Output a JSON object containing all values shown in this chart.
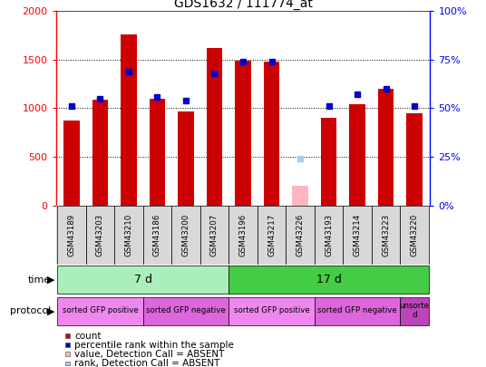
{
  "title": "GDS1632 / 111774_at",
  "samples": [
    "GSM43189",
    "GSM43203",
    "GSM43210",
    "GSM43186",
    "GSM43200",
    "GSM43207",
    "GSM43196",
    "GSM43217",
    "GSM43226",
    "GSM43193",
    "GSM43214",
    "GSM43223",
    "GSM43220"
  ],
  "count_values": [
    870,
    1090,
    1760,
    1100,
    970,
    1620,
    1490,
    1480,
    200,
    900,
    1040,
    1200,
    950
  ],
  "rank_values": [
    51,
    55,
    69,
    56,
    54,
    68,
    74,
    74,
    24,
    51,
    57,
    60,
    51
  ],
  "absent_mask": [
    0,
    0,
    0,
    0,
    0,
    0,
    0,
    0,
    1,
    0,
    0,
    0,
    0
  ],
  "ylim_left": [
    0,
    2000
  ],
  "ylim_right": [
    0,
    100
  ],
  "yticks_left": [
    0,
    500,
    1000,
    1500,
    2000
  ],
  "yticks_right": [
    0,
    25,
    50,
    75,
    100
  ],
  "bar_color_normal": "#cc0000",
  "bar_color_absent": "#ffb6c1",
  "rank_color_normal": "#0000cc",
  "rank_color_absent": "#aaccee",
  "bg_color": "#ffffff",
  "grid_color": "#000000",
  "time_groups": [
    {
      "label": "7 d",
      "start": 0,
      "end": 5,
      "color": "#aaeebb"
    },
    {
      "label": "17 d",
      "start": 6,
      "end": 12,
      "color": "#44cc44"
    }
  ],
  "protocol_groups": [
    {
      "label": "sorted GFP positive",
      "start": 0,
      "end": 2,
      "color": "#ee88ee"
    },
    {
      "label": "sorted GFP negative",
      "start": 3,
      "end": 5,
      "color": "#dd66dd"
    },
    {
      "label": "sorted GFP positive",
      "start": 6,
      "end": 8,
      "color": "#ee88ee"
    },
    {
      "label": "sorted GFP negative",
      "start": 9,
      "end": 11,
      "color": "#dd66dd"
    },
    {
      "label": "unsorte\nd",
      "start": 12,
      "end": 12,
      "color": "#bb44bb"
    }
  ],
  "legend_items": [
    {
      "color": "#cc0000",
      "label": "count"
    },
    {
      "color": "#0000cc",
      "label": "percentile rank within the sample"
    },
    {
      "color": "#ffb6c1",
      "label": "value, Detection Call = ABSENT"
    },
    {
      "color": "#aaccee",
      "label": "rank, Detection Call = ABSENT"
    }
  ]
}
